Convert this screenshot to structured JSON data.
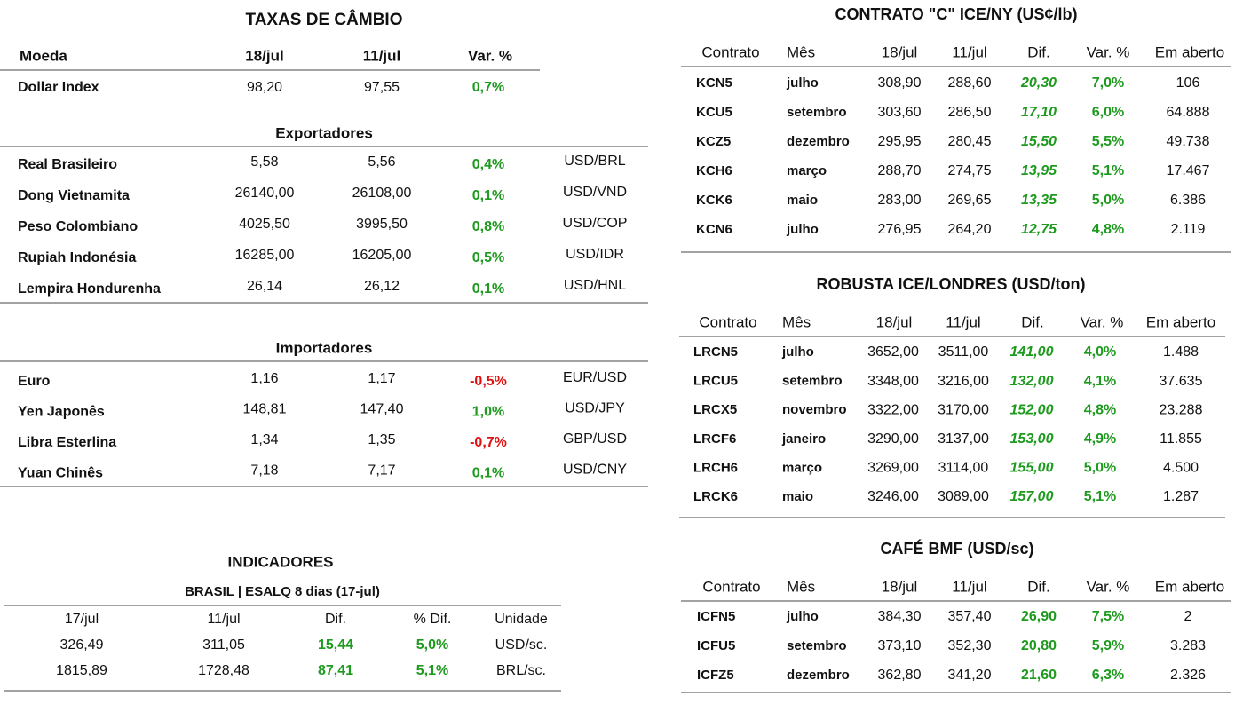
{
  "left": {
    "cambio": {
      "title": "TAXAS DE CÂMBIO",
      "header": [
        "Moeda",
        "18/jul",
        "11/jul",
        "Var. %"
      ],
      "rows": [
        [
          "Dollar Index",
          "98,20",
          "97,55",
          "0,7%"
        ]
      ]
    },
    "exportadores": {
      "title": "Exportadores",
      "rows": [
        [
          "Real Brasileiro",
          "5,58",
          "5,56",
          "0,4%",
          "USD/BRL"
        ],
        [
          "Dong Vietnamita",
          "26140,00",
          "26108,00",
          "0,1%",
          "USD/VND"
        ],
        [
          "Peso Colombiano",
          "4025,50",
          "3995,50",
          "0,8%",
          "USD/COP"
        ],
        [
          "Rupiah Indonésia",
          "16285,00",
          "16205,00",
          "0,5%",
          "USD/IDR"
        ],
        [
          "Lempira Hondurenha",
          "26,14",
          "26,12",
          "0,1%",
          "USD/HNL"
        ]
      ]
    },
    "importadores": {
      "title": "Importadores",
      "rows": [
        [
          "Euro",
          "1,16",
          "1,17",
          "-0,5%",
          "EUR/USD"
        ],
        [
          "Yen Japonês",
          "148,81",
          "147,40",
          "1,0%",
          "USD/JPY"
        ],
        [
          "Libra Esterlina",
          "1,34",
          "1,35",
          "-0,7%",
          "GBP/USD"
        ],
        [
          "Yuan Chinês",
          "7,18",
          "7,17",
          "0,1%",
          "USD/CNY"
        ]
      ]
    },
    "indicadores": {
      "title": "INDICADORES",
      "subtitle": "BRASIL | ESALQ 8 dias (17-jul)",
      "header": [
        "17/jul",
        "11/jul",
        "Dif.",
        "% Dif.",
        "Unidade"
      ],
      "rows": [
        [
          "326,49",
          "311,05",
          "15,44",
          "5,0%",
          "USD/sc."
        ],
        [
          "1815,89",
          "1728,48",
          "87,41",
          "5,1%",
          "BRL/sc."
        ]
      ]
    }
  },
  "right": {
    "ice_ny": {
      "title": "CONTRATO \"C\" ICE/NY (US¢/lb)",
      "header": [
        "Contrato",
        "Mês",
        "18/jul",
        "11/jul",
        "Dif.",
        "Var. %",
        "Em aberto"
      ],
      "rows": [
        [
          "KCN5",
          "julho",
          "308,90",
          "288,60",
          "20,30",
          "7,0%",
          "106"
        ],
        [
          "KCU5",
          "setembro",
          "303,60",
          "286,50",
          "17,10",
          "6,0%",
          "64.888"
        ],
        [
          "KCZ5",
          "dezembro",
          "295,95",
          "280,45",
          "15,50",
          "5,5%",
          "49.738"
        ],
        [
          "KCH6",
          "março",
          "288,70",
          "274,75",
          "13,95",
          "5,1%",
          "17.467"
        ],
        [
          "KCK6",
          "maio",
          "283,00",
          "269,65",
          "13,35",
          "5,0%",
          "6.386"
        ],
        [
          "KCN6",
          "julho",
          "276,95",
          "264,20",
          "12,75",
          "4,8%",
          "2.119"
        ]
      ]
    },
    "robusta": {
      "title": "ROBUSTA ICE/LONDRES (USD/ton)",
      "header": [
        "Contrato",
        "Mês",
        "18/jul",
        "11/jul",
        "Dif.",
        "Var. %",
        "Em aberto"
      ],
      "rows": [
        [
          "LRCN5",
          "julho",
          "3652,00",
          "3511,00",
          "141,00",
          "4,0%",
          "1.488"
        ],
        [
          "LRCU5",
          "setembro",
          "3348,00",
          "3216,00",
          "132,00",
          "4,1%",
          "37.635"
        ],
        [
          "LRCX5",
          "novembro",
          "3322,00",
          "3170,00",
          "152,00",
          "4,8%",
          "23.288"
        ],
        [
          "LRCF6",
          "janeiro",
          "3290,00",
          "3137,00",
          "153,00",
          "4,9%",
          "11.855"
        ],
        [
          "LRCH6",
          "março",
          "3269,00",
          "3114,00",
          "155,00",
          "5,0%",
          "4.500"
        ],
        [
          "LRCK6",
          "maio",
          "3246,00",
          "3089,00",
          "157,00",
          "5,1%",
          "1.287"
        ]
      ]
    },
    "bmf": {
      "title": "CAFÉ BMF (USD/sc)",
      "header": [
        "Contrato",
        "Mês",
        "18/jul",
        "11/jul",
        "Dif.",
        "Var. %",
        "Em aberto"
      ],
      "rows": [
        [
          "ICFN5",
          "julho",
          "384,30",
          "357,40",
          "26,90",
          "7,5%",
          "2"
        ],
        [
          "ICFU5",
          "setembro",
          "373,10",
          "352,30",
          "20,80",
          "5,9%",
          "3.283"
        ],
        [
          "ICFZ5",
          "dezembro",
          "362,80",
          "341,20",
          "21,60",
          "6,3%",
          "2.326"
        ]
      ]
    }
  }
}
